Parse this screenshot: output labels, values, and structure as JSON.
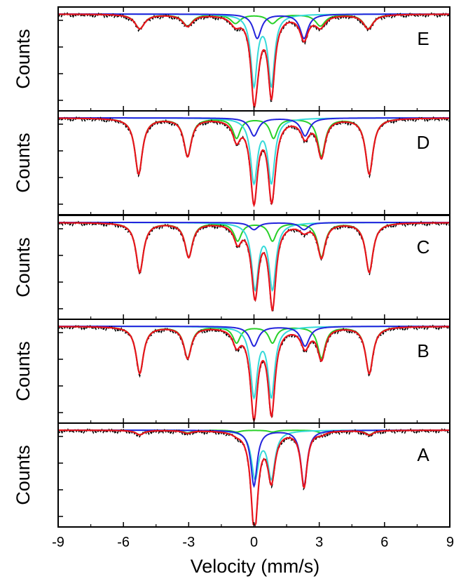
{
  "chart_data": {
    "type": "line",
    "title": "",
    "xlabel": "Velocity (mm/s)",
    "ylabel": "Counts",
    "xlim": [
      -9,
      9
    ],
    "x_ticks": [
      -9,
      -6,
      -3,
      0,
      3,
      6,
      9
    ],
    "x_tick_labels": [
      "-9",
      "-6",
      "-3",
      "0",
      "3",
      "6",
      "9"
    ],
    "panel_order_top_to_bottom": [
      "E",
      "D",
      "C",
      "B",
      "A"
    ],
    "colors": {
      "experimental": "#000000",
      "total_fit": "#e8141c",
      "sextet": "#29d029",
      "doublet_1": "#36dada",
      "doublet_2": "#2323dc"
    },
    "panels": [
      {
        "label": "E",
        "components": [
          {
            "color_key": "sextet",
            "kind": "sextet",
            "center": 0.0,
            "splitting_lines": [
              -5.25,
              -3.05,
              -0.85,
              0.85,
              3.05,
              5.25
            ],
            "depths": [
              0.16,
              0.13,
              0.1,
              0.1,
              0.13,
              0.16
            ],
            "width": 0.55
          },
          {
            "color_key": "doublet_1",
            "kind": "doublet",
            "lines": [
              0.0,
              0.8
            ],
            "depths": [
              0.78,
              0.78
            ],
            "width": 0.35
          },
          {
            "color_key": "doublet_2",
            "kind": "doublet",
            "lines": [
              0.15,
              2.3
            ],
            "depths": [
              0.27,
              0.27
            ],
            "width": 0.45
          }
        ]
      },
      {
        "label": "D",
        "components": [
          {
            "color_key": "sextet",
            "kind": "sextet",
            "center": 0.0,
            "splitting_lines": [
              -5.3,
              -3.05,
              -0.8,
              0.9,
              3.1,
              5.3
            ],
            "depths": [
              0.62,
              0.42,
              0.22,
              0.22,
              0.42,
              0.62
            ],
            "width": 0.42
          },
          {
            "color_key": "doublet_1",
            "kind": "doublet",
            "lines": [
              0.0,
              0.8
            ],
            "depths": [
              0.7,
              0.7
            ],
            "width": 0.38
          },
          {
            "color_key": "doublet_2",
            "kind": "doublet",
            "lines": [
              0.0,
              2.35
            ],
            "depths": [
              0.2,
              0.2
            ],
            "width": 0.48
          }
        ]
      },
      {
        "label": "C",
        "components": [
          {
            "color_key": "sextet",
            "kind": "sextet",
            "center": 0.0,
            "splitting_lines": [
              -5.25,
              -3.0,
              -0.75,
              0.85,
              3.1,
              5.3
            ],
            "depths": [
              0.55,
              0.38,
              0.2,
              0.2,
              0.38,
              0.55
            ],
            "width": 0.42
          },
          {
            "color_key": "doublet_1",
            "kind": "doublet",
            "lines": [
              0.05,
              0.85
            ],
            "depths": [
              0.72,
              0.72
            ],
            "width": 0.38
          },
          {
            "color_key": "doublet_2",
            "kind": "doublet",
            "lines": [
              0.0,
              2.3
            ],
            "depths": [
              0.08,
              0.08
            ],
            "width": 0.5
          }
        ]
      },
      {
        "label": "B",
        "components": [
          {
            "color_key": "sextet",
            "kind": "sextet",
            "center": 0.0,
            "splitting_lines": [
              -5.25,
              -3.05,
              -0.8,
              0.85,
              3.1,
              5.3
            ],
            "depths": [
              0.52,
              0.35,
              0.18,
              0.18,
              0.35,
              0.52
            ],
            "width": 0.42
          },
          {
            "color_key": "doublet_1",
            "kind": "doublet",
            "lines": [
              0.0,
              0.8
            ],
            "depths": [
              0.76,
              0.76
            ],
            "width": 0.38
          },
          {
            "color_key": "doublet_2",
            "kind": "doublet",
            "lines": [
              0.0,
              2.35
            ],
            "depths": [
              0.22,
              0.22
            ],
            "width": 0.48
          }
        ]
      },
      {
        "label": "A",
        "components": [
          {
            "color_key": "sextet",
            "kind": "sextet",
            "center": 0.0,
            "splitting_lines": [
              -5.25,
              -3.05,
              -0.8,
              0.85,
              3.1,
              5.3
            ],
            "depths": [
              0.05,
              0.03,
              0.02,
              0.02,
              0.03,
              0.05
            ],
            "width": 0.45
          },
          {
            "color_key": "doublet_1",
            "kind": "doublet",
            "lines": [
              0.05,
              0.8
            ],
            "depths": [
              0.52,
              0.52
            ],
            "width": 0.4
          },
          {
            "color_key": "doublet_2",
            "kind": "doublet",
            "lines": [
              0.0,
              2.3
            ],
            "depths": [
              0.62,
              0.62
            ],
            "width": 0.35
          }
        ]
      }
    ]
  }
}
